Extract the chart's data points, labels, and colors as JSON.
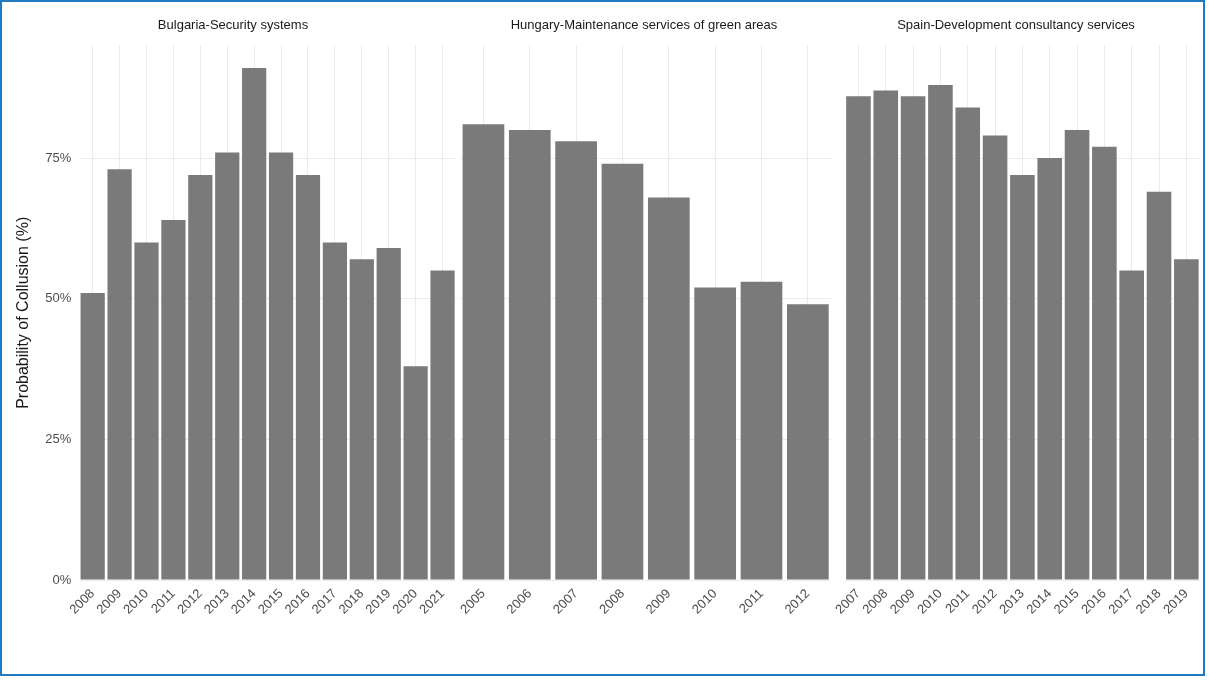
{
  "chart_data": [
    {
      "type": "bar",
      "title": "Bulgaria-Security systems",
      "ylabel": "Probability of Collusion (%)",
      "categories": [
        "2008",
        "2009",
        "2010",
        "2011",
        "2012",
        "2013",
        "2014",
        "2015",
        "2016",
        "2017",
        "2018",
        "2019",
        "2020",
        "2021"
      ],
      "values": [
        51,
        73,
        60,
        64,
        72,
        76,
        91,
        76,
        72,
        60,
        57,
        59,
        38,
        55
      ],
      "color": "#7a7a7a",
      "ylim": [
        0,
        95
      ],
      "yticks": [
        {
          "value": 0,
          "label": "0%"
        },
        {
          "value": 25,
          "label": "25%"
        },
        {
          "value": 50,
          "label": "50%"
        },
        {
          "value": 75,
          "label": "75%"
        }
      ],
      "grid": true
    },
    {
      "type": "bar",
      "title": "Hungary-Maintenance services of green areas",
      "categories": [
        "2005",
        "2006",
        "2007",
        "2008",
        "2009",
        "2010",
        "2011",
        "2012"
      ],
      "values": [
        81,
        80,
        78,
        74,
        68,
        52,
        53,
        49
      ],
      "color": "#7a7a7a",
      "ylim": [
        0,
        95
      ],
      "yticks": [
        0,
        25,
        50,
        75
      ],
      "grid": true,
      "tick_labels": "x"
    },
    {
      "type": "bar",
      "title": "Spain-Development consultancy services",
      "categories": [
        "2007",
        "2008",
        "2009",
        "2010",
        "2011",
        "2012",
        "2013",
        "2014",
        "2015",
        "2016",
        "2017",
        "2018",
        "2019"
      ],
      "values": [
        86,
        87,
        86,
        88,
        84,
        79,
        72,
        75,
        80,
        77,
        55,
        69,
        57
      ],
      "color": "#7a7a7a",
      "ylim": [
        0,
        95
      ],
      "yticks": [
        0,
        25,
        50,
        75
      ],
      "grid": true,
      "tick_labels": "x"
    }
  ]
}
